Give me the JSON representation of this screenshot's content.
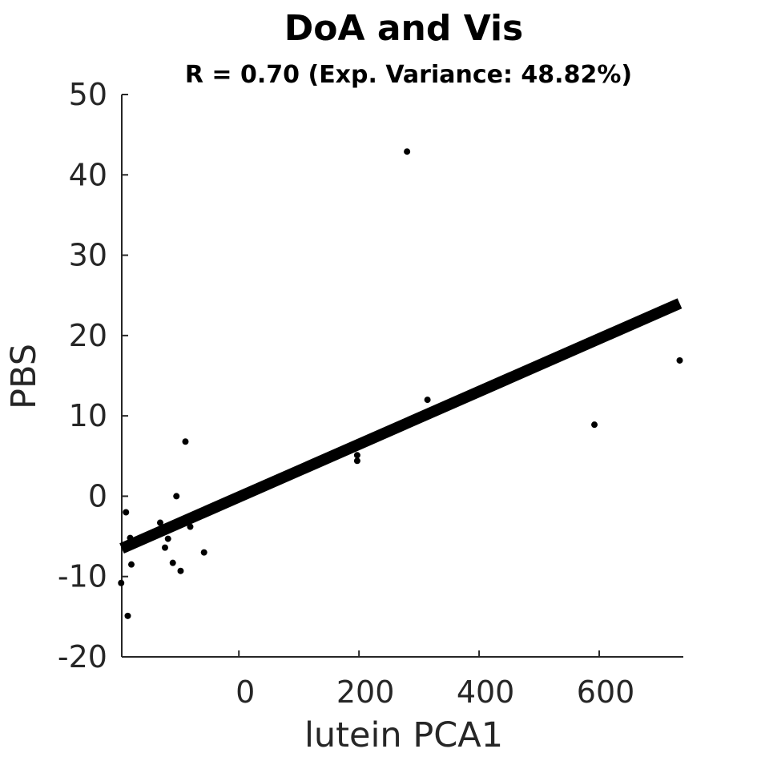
{
  "chart_data": {
    "type": "scatter",
    "title": "DoA and Vis",
    "subtitle": "R = 0.70 (Exp. Variance: 48.82%)",
    "xlabel": "lutein PCA1",
    "ylabel": "PBS",
    "xlim": [
      -195,
      740
    ],
    "ylim": [
      -20,
      50
    ],
    "xticks": [
      0,
      200,
      400,
      600
    ],
    "yticks": [
      -20,
      -10,
      0,
      10,
      20,
      30,
      40,
      50
    ],
    "grid": false,
    "points": [
      {
        "x": -196,
        "y": -10.8
      },
      {
        "x": -188,
        "y": -2.0
      },
      {
        "x": -185,
        "y": -14.9
      },
      {
        "x": -181,
        "y": -5.2
      },
      {
        "x": -179,
        "y": -8.5
      },
      {
        "x": -131,
        "y": -3.3
      },
      {
        "x": -123,
        "y": -6.4
      },
      {
        "x": -118,
        "y": -5.3
      },
      {
        "x": -110,
        "y": -8.3
      },
      {
        "x": -104,
        "y": 0.0
      },
      {
        "x": -97,
        "y": -9.3
      },
      {
        "x": -89,
        "y": 6.8
      },
      {
        "x": -81,
        "y": -3.8
      },
      {
        "x": -58,
        "y": -7.0
      },
      {
        "x": 197,
        "y": 5.1
      },
      {
        "x": 197,
        "y": 4.4
      },
      {
        "x": 280,
        "y": 42.9
      },
      {
        "x": 314,
        "y": 12.0
      },
      {
        "x": 592,
        "y": 8.9
      },
      {
        "x": 734,
        "y": 16.9
      }
    ],
    "fit_line": {
      "x": [
        -195,
        734
      ],
      "y": [
        -6.5,
        24.0
      ]
    }
  }
}
